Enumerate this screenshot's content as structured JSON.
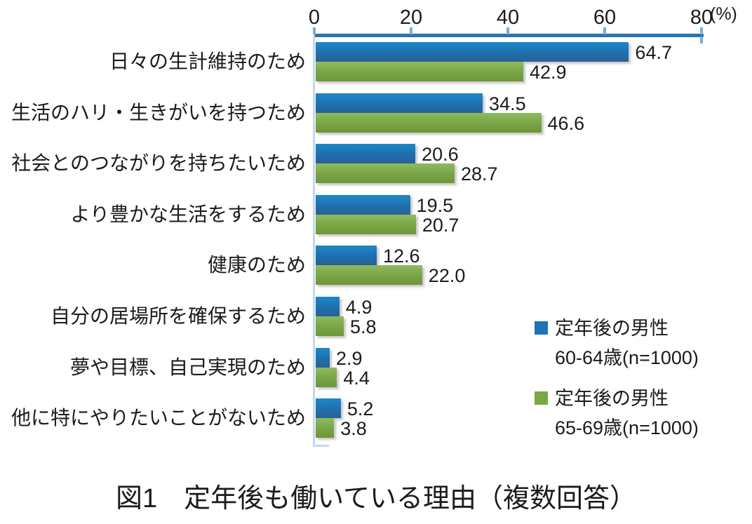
{
  "chart_data": {
    "type": "bar",
    "orientation": "horizontal",
    "title": "",
    "caption": "図1　定年後も働いている理由（複数回答）",
    "unit_label": "(%)",
    "axis_ticks": [
      0,
      20,
      40,
      60,
      80
    ],
    "xlim": [
      0,
      80
    ],
    "grid": false,
    "legend_position": "bottom-right",
    "categories": [
      "日々の生計維持のため",
      "生活のハリ・生きがいを持つため",
      "社会とのつながりを持ちたいため",
      "より豊かな生活をするため",
      "健康のため",
      "自分の居場所を確保するため",
      "夢や目標、自己実現のため",
      "他に特にやりたいことがないため"
    ],
    "series": [
      {
        "name": "定年後の男性 60-64歳(n=1000)",
        "legend_lines": [
          "定年後の男性",
          "60-64歳(n=1000)"
        ],
        "color": "#1f74b4",
        "values": [
          64.7,
          34.5,
          20.6,
          19.5,
          12.6,
          4.9,
          2.9,
          5.2
        ]
      },
      {
        "name": "定年後の男性 65-69歳(n=1000)",
        "legend_lines": [
          "定年後の男性",
          "65-69歳(n=1000)"
        ],
        "color": "#79a845",
        "values": [
          42.9,
          46.6,
          28.7,
          20.7,
          22.0,
          5.8,
          4.4,
          3.8
        ]
      }
    ],
    "colors": {
      "axis_line": "#2b72b0",
      "tick": "#7badd9",
      "plot_border": "#c3d9ed",
      "text": "#1b1b1b",
      "blue_bar": "#1f74b4",
      "green_bar": "#79a845"
    }
  }
}
